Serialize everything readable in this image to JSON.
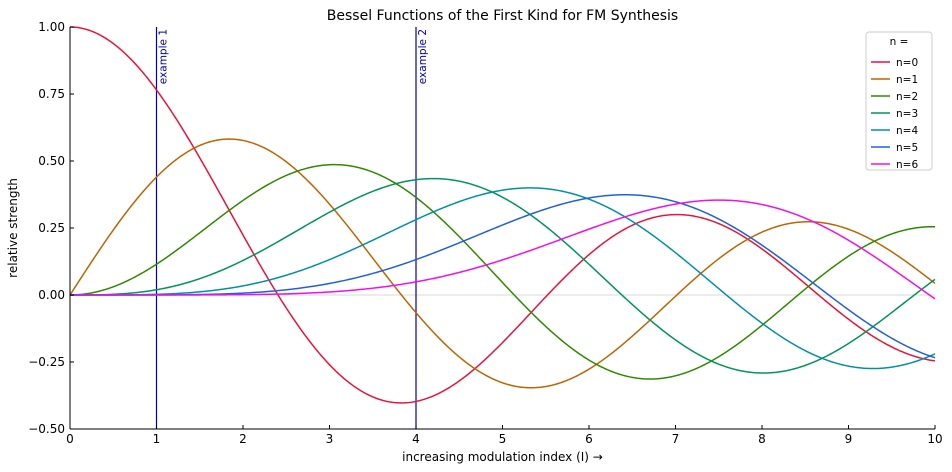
{
  "chart_data": {
    "type": "line",
    "title": "Bessel Functions of the First Kind for FM Synthesis",
    "xlabel": "increasing modulation index (I) →",
    "ylabel": "relative strength",
    "xlim": [
      0,
      10
    ],
    "ylim": [
      -0.5,
      1.0
    ],
    "xticks": [
      0,
      1,
      2,
      3,
      4,
      5,
      6,
      7,
      8,
      9,
      10
    ],
    "yticks": [
      -0.5,
      -0.25,
      0.0,
      0.25,
      0.5,
      0.75,
      1.0
    ],
    "ytick_labels": [
      "−0.50",
      "−0.25",
      "0.00",
      "0.25",
      "0.50",
      "0.75",
      "1.00"
    ],
    "grid": false,
    "zero_line": true,
    "legend": {
      "title": "n =",
      "placement": "top-right"
    },
    "series": [
      {
        "name": "n=0",
        "order": 0,
        "color": "#e8143a"
      },
      {
        "name": "n=1",
        "order": 1,
        "color": "#c06400"
      },
      {
        "name": "n=2",
        "order": 2,
        "color": "#2f8a00"
      },
      {
        "name": "n=3",
        "order": 3,
        "color": "#00955a"
      },
      {
        "name": "n=4",
        "order": 4,
        "color": "#0090a8"
      },
      {
        "name": "n=5",
        "order": 5,
        "color": "#2060e0"
      },
      {
        "name": "n=6",
        "order": 6,
        "color": "#f010e8"
      }
    ],
    "annotations": [
      {
        "x": 1,
        "label": "example 1",
        "color": "#0000aa"
      },
      {
        "x": 4,
        "label": "example 2",
        "color": "#0000aa"
      }
    ]
  }
}
